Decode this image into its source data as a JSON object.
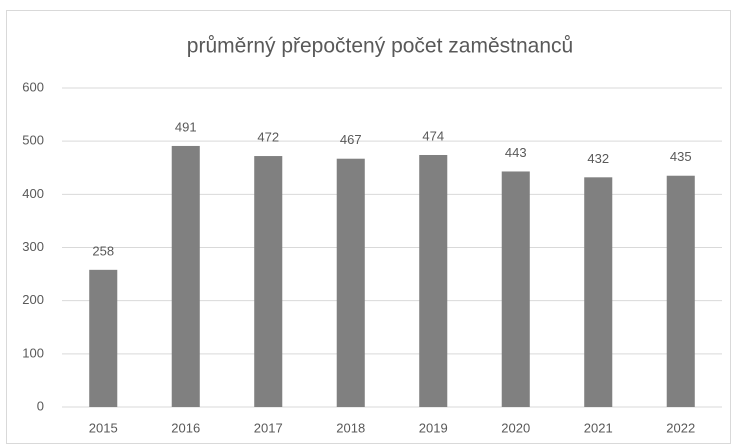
{
  "chart_data": {
    "type": "bar",
    "title": "průměrný přepočtený počet zaměstnanců",
    "categories": [
      "2015",
      "2016",
      "2017",
      "2018",
      "2019",
      "2020",
      "2021",
      "2022"
    ],
    "values": [
      258,
      491,
      472,
      467,
      474,
      443,
      432,
      435
    ],
    "color": "#808080",
    "ylim": [
      0,
      600
    ],
    "yticks": [
      0,
      100,
      200,
      300,
      400,
      500,
      600
    ],
    "grid": true
  }
}
